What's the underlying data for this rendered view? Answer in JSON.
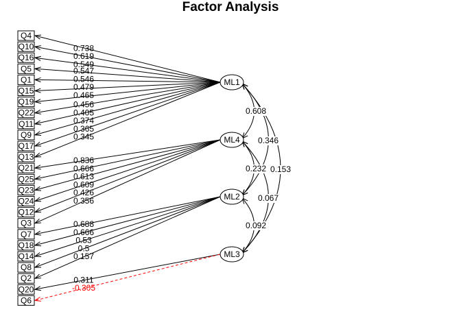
{
  "title": "Factor Analysis",
  "colors": {
    "positive": "#000000",
    "negative": "#ff0000"
  },
  "variables": [
    "Q4",
    "Q10",
    "Q16",
    "Q5",
    "Q1",
    "Q15",
    "Q19",
    "Q22",
    "Q11",
    "Q9",
    "Q17",
    "Q13",
    "Q21",
    "Q25",
    "Q23",
    "Q24",
    "Q12",
    "Q3",
    "Q7",
    "Q18",
    "Q14",
    "Q8",
    "Q2",
    "Q20",
    "Q6"
  ],
  "factors": [
    "ML1",
    "ML4",
    "ML2",
    "ML3"
  ],
  "loadings": [
    {
      "factor": "ML1",
      "variable": "Q4",
      "value": "0.738"
    },
    {
      "factor": "ML1",
      "variable": "Q10",
      "value": "0.619"
    },
    {
      "factor": "ML1",
      "variable": "Q16",
      "value": "0.549"
    },
    {
      "factor": "ML1",
      "variable": "Q5",
      "value": "0.547"
    },
    {
      "factor": "ML1",
      "variable": "Q1",
      "value": "0.546"
    },
    {
      "factor": "ML1",
      "variable": "Q15",
      "value": "0.479"
    },
    {
      "factor": "ML1",
      "variable": "Q19",
      "value": "0.465"
    },
    {
      "factor": "ML1",
      "variable": "Q22",
      "value": "0.456"
    },
    {
      "factor": "ML1",
      "variable": "Q11",
      "value": "0.405"
    },
    {
      "factor": "ML1",
      "variable": "Q9",
      "value": "0.374"
    },
    {
      "factor": "ML1",
      "variable": "Q17",
      "value": "0.365"
    },
    {
      "factor": "ML1",
      "variable": "Q13",
      "value": "0.345"
    },
    {
      "factor": "ML4",
      "variable": "Q21",
      "value": "0.836"
    },
    {
      "factor": "ML4",
      "variable": "Q25",
      "value": "0.666"
    },
    {
      "factor": "ML4",
      "variable": "Q23",
      "value": "0.613"
    },
    {
      "factor": "ML4",
      "variable": "Q24",
      "value": "0.609"
    },
    {
      "factor": "ML4",
      "variable": "Q12",
      "value": "0.426"
    },
    {
      "factor": "ML4",
      "variable": "Q3",
      "value": "0.356"
    },
    {
      "factor": "ML2",
      "variable": "Q7",
      "value": "0.688"
    },
    {
      "factor": "ML2",
      "variable": "Q18",
      "value": "0.666"
    },
    {
      "factor": "ML2",
      "variable": "Q14",
      "value": "0.53"
    },
    {
      "factor": "ML2",
      "variable": "Q8",
      "value": "0.5"
    },
    {
      "factor": "ML2",
      "variable": "Q2",
      "value": "0.157"
    },
    {
      "factor": "ML3",
      "variable": "Q20",
      "value": "0.311"
    },
    {
      "factor": "ML3",
      "variable": "Q6",
      "value": "-0.305",
      "negative": true
    }
  ],
  "correlations": [
    {
      "from": "ML1",
      "to": "ML4",
      "value": "0.608"
    },
    {
      "from": "ML1",
      "to": "ML2",
      "value": "0.346"
    },
    {
      "from": "ML1",
      "to": "ML3",
      "value": "0.153"
    },
    {
      "from": "ML4",
      "to": "ML2",
      "value": "0.232"
    },
    {
      "from": "ML4",
      "to": "ML3",
      "value": "0.067"
    },
    {
      "from": "ML2",
      "to": "ML3",
      "value": "0.092"
    }
  ]
}
